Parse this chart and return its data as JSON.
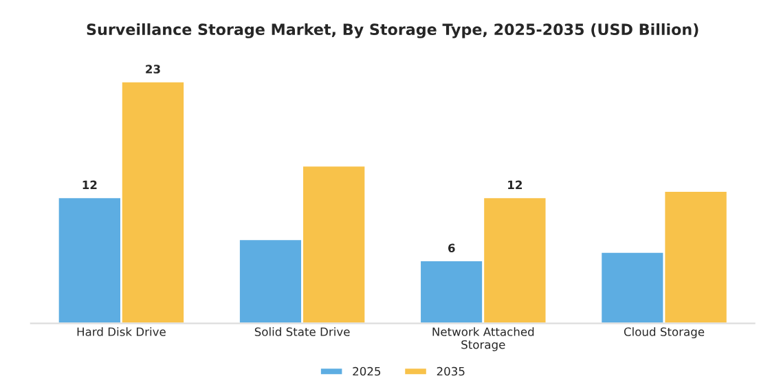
{
  "chart_data": {
    "type": "bar",
    "title": "Surveillance Storage Market, By Storage Type, 2025-2035 (USD Billion)",
    "categories": [
      "Hard Disk Drive",
      "Solid State Drive",
      "Network Attached\nStorage",
      "Cloud Storage"
    ],
    "series": [
      {
        "name": "2025",
        "color": "#5dade2",
        "values": [
          12,
          8,
          6,
          6.8
        ],
        "value_labels": [
          "12",
          null,
          "6",
          null
        ]
      },
      {
        "name": "2035",
        "color": "#f8c24a",
        "values": [
          23,
          15,
          12,
          12.6
        ],
        "value_labels": [
          "23",
          null,
          "12",
          null
        ]
      }
    ],
    "tick_labels": "x",
    "grid": false,
    "legend": "bottom"
  }
}
